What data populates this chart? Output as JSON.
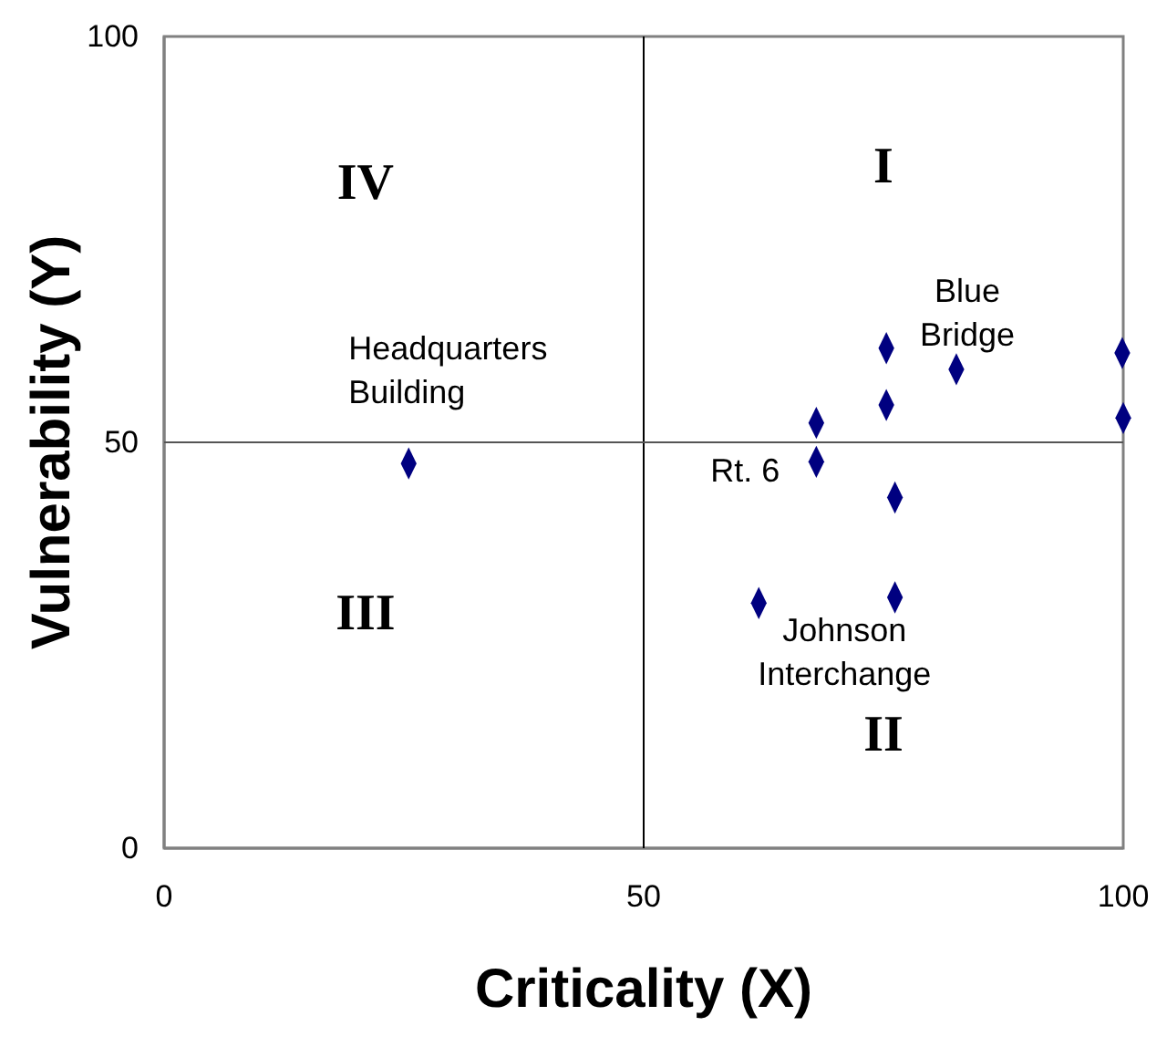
{
  "chart_data": {
    "type": "scatter",
    "xlabel": "Criticality (X)",
    "ylabel": "Vulnerability (Y)",
    "xlim": [
      0,
      100
    ],
    "ylim": [
      0,
      100
    ],
    "xticks": [
      0,
      50,
      100
    ],
    "yticks": [
      0,
      50,
      100
    ],
    "grid": false,
    "marker": "diamond",
    "series": [
      {
        "color": "#000080",
        "x": [
          25.5,
          75.3,
          82.6,
          99.9,
          100,
          68.0,
          75.3,
          68.0,
          76.2,
          62.0,
          76.2
        ],
        "values": [
          47.4,
          61.6,
          59.0,
          61.0,
          53.0,
          52.4,
          54.6,
          47.6,
          43.2,
          30.2,
          30.9
        ]
      }
    ],
    "ref_lines": [
      {
        "axis": "x",
        "value": 50,
        "color": "#000000"
      },
      {
        "axis": "y",
        "value": 50,
        "color": "#555555"
      }
    ],
    "annotations": [
      "I",
      "II",
      "III",
      "IV",
      {
        "text": "Headquarters Building",
        "x": 25.5,
        "y": 47.4
      },
      {
        "text": "Blue Bridge",
        "x": 82.6,
        "y": 59.0
      },
      {
        "text": "Rt. 6",
        "x": 68.0,
        "y": 47.6
      },
      {
        "text": "Johnson Interchange",
        "x": 62.0,
        "y": 30.2
      }
    ]
  }
}
